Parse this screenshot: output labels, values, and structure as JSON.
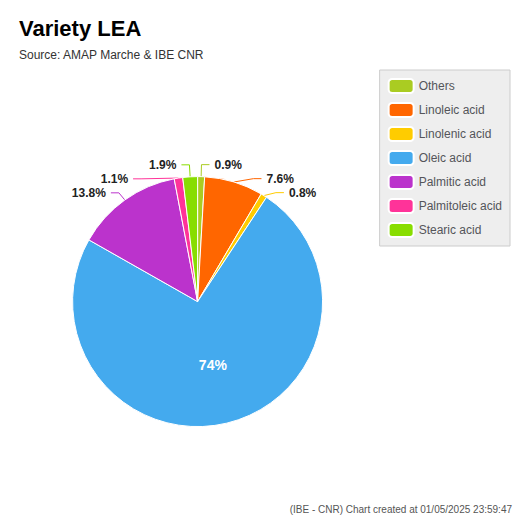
{
  "chart_data": {
    "type": "pie",
    "title": "Variety LEA",
    "subtitle": "Source: AMAP Marche & IBE CNR",
    "annotations": [
      "(IBE - CNR) Chart created at 01/05/2025 23:59:47"
    ],
    "categories": [
      "Others",
      "Linoleic acid",
      "Linolenic acid",
      "Oleic acid",
      "Palmitic acid",
      "Palmitoleic acid",
      "Stearic acid"
    ],
    "values": [
      0.9,
      7.6,
      0.8,
      74,
      13.8,
      1.1,
      1.9
    ],
    "value_labels": [
      "0.9%",
      "7.6%",
      "0.8%",
      "74%",
      "13.8%",
      "1.1%",
      "1.9%"
    ],
    "colors": [
      "#aacc22",
      "#ff6600",
      "#ffcc00",
      "#44aaee",
      "#bb33cc",
      "#ff3399",
      "#88dd00"
    ],
    "data_labels": true,
    "legend": "upper right"
  }
}
